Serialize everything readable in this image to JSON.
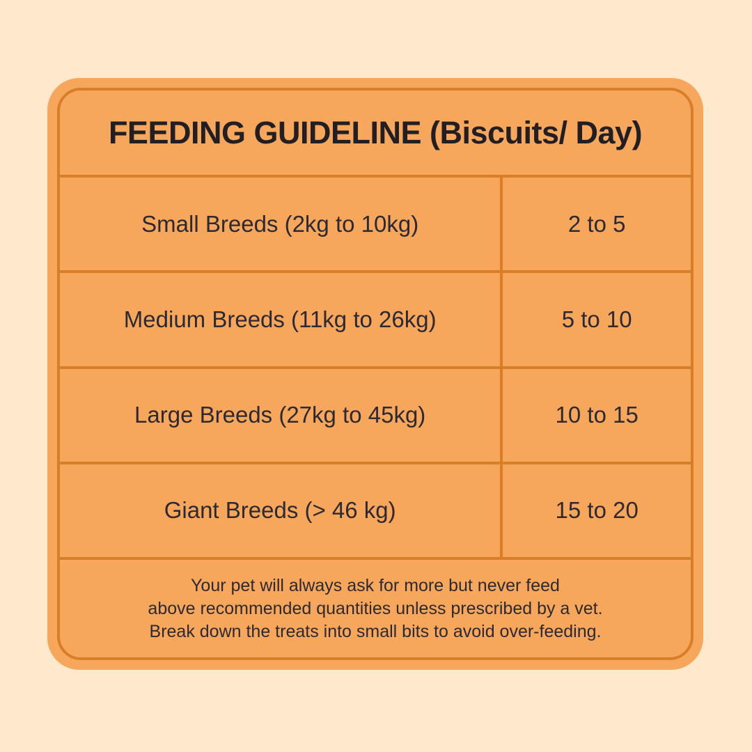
{
  "title": "FEEDING GUIDELINE (Biscuits/ Day)",
  "table": {
    "rows": [
      {
        "breed": "Small Breeds (2kg to 10kg)",
        "quantity": "2 to 5"
      },
      {
        "breed": "Medium Breeds (11kg to 26kg)",
        "quantity": "5 to 10"
      },
      {
        "breed": "Large Breeds (27kg to 45kg)",
        "quantity": "10 to 15"
      },
      {
        "breed": "Giant Breeds (> 46 kg)",
        "quantity": "15 to 20"
      }
    ]
  },
  "footer": {
    "line1": "Your pet will always ask for more but never feed",
    "line2": "above recommended quantities unless prescribed by a vet.",
    "line3": "Break down the treats into small bits to avoid over-feeding."
  },
  "colors": {
    "background": "#FFE9CC",
    "card": "#F7A75C",
    "line": "#D97E28",
    "text": "#2C2933",
    "title_text": "#211E24"
  },
  "chart_data": {
    "type": "table",
    "title": "FEEDING GUIDELINE (Biscuits/ Day)",
    "rows": [
      [
        "Small Breeds (2kg to 10kg)",
        "2 to 5"
      ],
      [
        "Medium Breeds (11kg to 26kg)",
        "5 to 10"
      ],
      [
        "Large Breeds (27kg to 45kg)",
        "10 to 15"
      ],
      [
        "Giant Breeds (> 46 kg)",
        "15 to 20"
      ]
    ],
    "note": "Your pet will always ask for more but never feed above recommended quantities unless prescribed by a vet. Break down the treats into small bits to avoid over-feeding."
  }
}
